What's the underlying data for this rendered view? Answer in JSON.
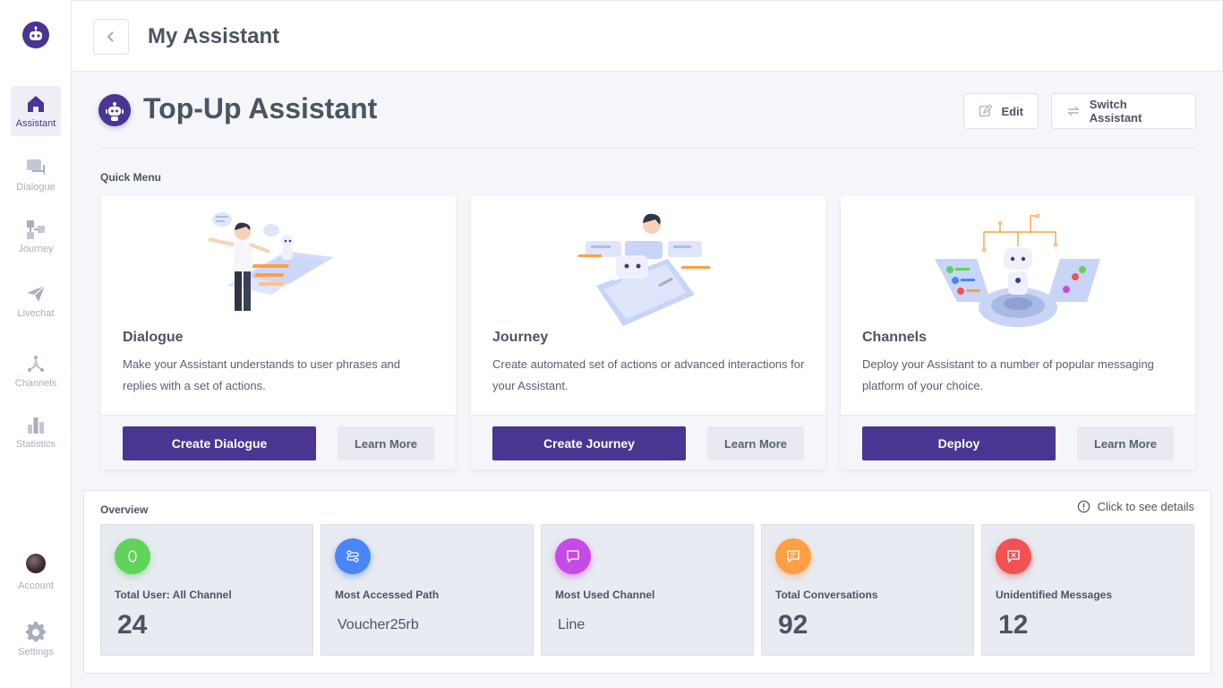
{
  "sidebar": {
    "items": [
      {
        "label": "Assistant",
        "icon": "home-icon",
        "active": true
      },
      {
        "label": "Dialogue",
        "icon": "chat-icon"
      },
      {
        "label": "Journey",
        "icon": "flow-icon"
      },
      {
        "label": "Livechat",
        "icon": "send-icon"
      },
      {
        "label": "Channels",
        "icon": "channels-icon"
      },
      {
        "label": "Statistics",
        "icon": "bar-chart-icon"
      }
    ],
    "account_label": "Account",
    "settings_label": "Settings"
  },
  "header": {
    "title": "My Assistant"
  },
  "assistant": {
    "name": "Top-Up Assistant",
    "edit_label": "Edit",
    "switch_label": "Switch Assistant"
  },
  "quick_menu": {
    "title": "Quick Menu",
    "cards": [
      {
        "title": "Dialogue",
        "description": "Make your Assistant understands to user phrases and replies with a set of actions.",
        "primary": "Create Dialogue",
        "secondary": "Learn More"
      },
      {
        "title": "Journey",
        "description": "Create automated set of actions or advanced interactions for your Assistant.",
        "primary": "Create Journey",
        "secondary": "Learn More"
      },
      {
        "title": "Channels",
        "description": "Deploy your Assistant to a number of popular messaging platform of your choice.",
        "primary": "Deploy",
        "secondary": "Learn More"
      }
    ]
  },
  "overview": {
    "title": "Overview",
    "details_label": "Click to see details",
    "stats": [
      {
        "label": "Total User: All Channel",
        "value": "24",
        "color": "#5fd35a",
        "icon": "leaf-icon"
      },
      {
        "label": "Most Accessed Path",
        "value": "Voucher25rb",
        "color": "#4a86f7",
        "icon": "path-icon"
      },
      {
        "label": "Most Used Channel",
        "value": "Line",
        "color": "#c54ae8",
        "icon": "message-icon"
      },
      {
        "label": "Total Conversations",
        "value": "92",
        "color": "#ff9f43",
        "icon": "conversation-icon"
      },
      {
        "label": "Unidentified Messages",
        "value": "12",
        "color": "#f25252",
        "icon": "unknown-message-icon"
      }
    ]
  },
  "colors": {
    "primary": "#4a3592",
    "sidebar_inactive": "#a9aebd"
  }
}
